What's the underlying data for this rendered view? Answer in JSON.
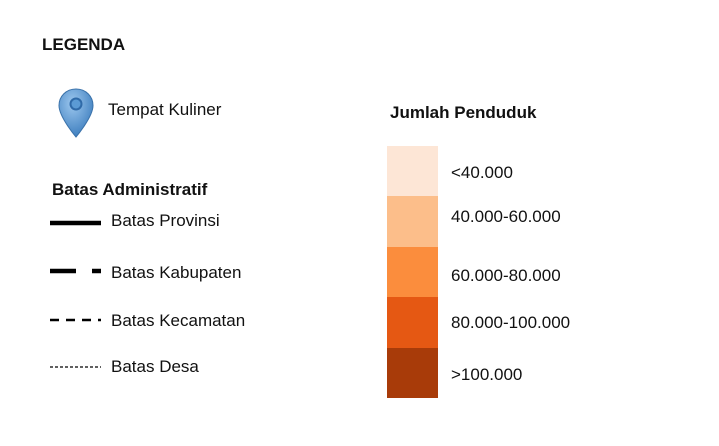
{
  "legend": {
    "title": "LEGENDA",
    "poi": {
      "icon": "map-pin-icon",
      "label": "Tempat Kuliner",
      "color": "#5B9BD5"
    },
    "admin": {
      "heading": "Batas Administratif",
      "items": [
        {
          "label": "Batas Provinsi",
          "style": "solid-thick"
        },
        {
          "label": "Batas Kabupaten",
          "style": "long-dash"
        },
        {
          "label": "Batas Kecamatan",
          "style": "dash"
        },
        {
          "label": "Batas Desa",
          "style": "fine-dash"
        }
      ]
    },
    "population": {
      "heading": "Jumlah Penduduk",
      "classes": [
        {
          "label": "<40.000",
          "color": "#FDE6D6"
        },
        {
          "label": "40.000-60.000",
          "color": "#FCBE8A"
        },
        {
          "label": "60.000-80.000",
          "color": "#FB8D3D"
        },
        {
          "label": "80.000-100.000",
          "color": "#E55813"
        },
        {
          "label": ">100.000",
          "color": "#A83B09"
        }
      ]
    }
  }
}
